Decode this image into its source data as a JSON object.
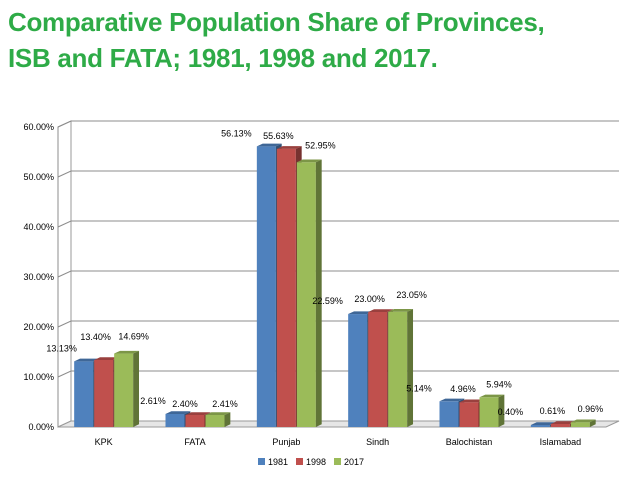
{
  "title": {
    "line1": "Comparative Population Share of Provinces,",
    "line2": "ISB and FATA; 1981, 1998 and 2017."
  },
  "chart_data": {
    "type": "bar",
    "categories": [
      "KPK",
      "FATA",
      "Punjab",
      "Sindh",
      "Balochistan",
      "Islamabad"
    ],
    "series": [
      {
        "name": "1981",
        "color": "#4f81bd",
        "values": [
          13.13,
          2.61,
          56.13,
          22.59,
          5.14,
          0.4
        ],
        "labels": [
          "13.13%",
          "2.61%",
          "56.13%",
          "22.59%",
          "5.14%",
          "0.40%"
        ]
      },
      {
        "name": "1998",
        "color": "#c0504d",
        "values": [
          13.4,
          2.4,
          55.63,
          23.0,
          4.96,
          0.61
        ],
        "labels": [
          "13.40%",
          "2.40%",
          "55.63%",
          "23.00%",
          "4.96%",
          "0.61%"
        ]
      },
      {
        "name": "2017",
        "color": "#9bbb59",
        "values": [
          14.69,
          2.41,
          52.95,
          23.05,
          5.94,
          0.96
        ],
        "labels": [
          "14.69%",
          "2.41%",
          "52.95%",
          "23.05%",
          "5.94%",
          "0.96%"
        ]
      }
    ],
    "ylim": [
      0,
      60
    ],
    "yticks": [
      0,
      10,
      20,
      30,
      40,
      50,
      60
    ],
    "ytick_labels": [
      "0.00%",
      "10.00%",
      "20.00%",
      "30.00%",
      "40.00%",
      "50.00%",
      "60.00%"
    ],
    "xlabel": "",
    "ylabel": "",
    "legend_position": "bottom",
    "grid": true
  }
}
